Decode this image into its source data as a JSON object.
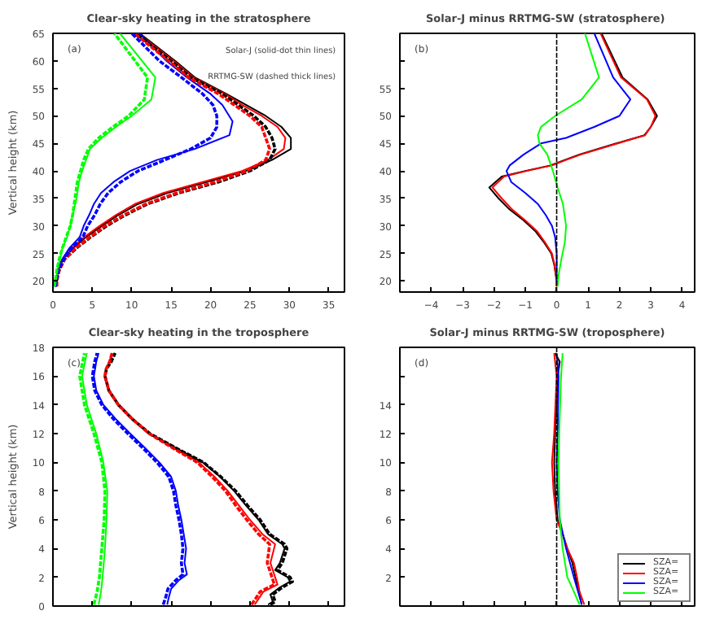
{
  "chart_data": [
    {
      "type": "line",
      "title": "Clear-sky heating in the stratosphere",
      "ylabel": "Vertical height (km)",
      "xlim": [
        0,
        37
      ],
      "ylim": [
        18,
        65
      ],
      "xticks": [
        0,
        5,
        10,
        15,
        20,
        25,
        30,
        35
      ],
      "yticks": [
        20,
        25,
        30,
        35,
        40,
        45,
        50,
        55,
        60,
        65
      ],
      "grid": false,
      "annotations": [
        "(a)",
        "Solar-J (solid-dot thin lines)",
        "RRTMG-SW (dashed thick lines)"
      ],
      "series": [
        {
          "color": "#000000",
          "line_style": "solid",
          "x": [
            0.3,
            0.4,
            0.7,
            1.3,
            2.6,
            4.2,
            6.2,
            8.3,
            10.8,
            14.5,
            19.5,
            24.5,
            27.8,
            30.2,
            30.2,
            29,
            27,
            24.5,
            22,
            18,
            15.5,
            11
          ],
          "values": [
            19,
            20,
            22,
            24,
            26,
            28,
            30,
            32,
            34,
            36,
            38,
            40,
            42,
            44,
            46,
            48,
            50,
            52,
            54,
            57,
            60,
            65
          ]
        },
        {
          "color": "#000000",
          "line_style": "dashed",
          "x": [
            0.3,
            0.4,
            0.8,
            1.5,
            3.0,
            4.8,
            6.8,
            9.2,
            12,
            16,
            21,
            25,
            27.5,
            28.2,
            27.8,
            27,
            25.5,
            23.5,
            21.5,
            17.5,
            15,
            10.5
          ],
          "values": [
            19,
            20,
            22,
            24,
            26,
            28,
            30,
            32,
            34,
            36,
            38,
            40,
            42,
            44,
            46,
            48,
            50,
            52,
            54,
            57,
            60,
            65
          ]
        },
        {
          "color": "#ff0000",
          "line_style": "solid",
          "x": [
            0.3,
            0.4,
            0.6,
            1.2,
            2.4,
            4.0,
            5.9,
            8.0,
            10.4,
            14,
            19,
            24,
            27.3,
            29.3,
            29.5,
            28.5,
            26.5,
            24,
            21.8,
            17.8,
            15.3,
            10.8
          ],
          "values": [
            19,
            20,
            22,
            24,
            26,
            28,
            30,
            32,
            34,
            36,
            38,
            40,
            42,
            44,
            46,
            48,
            50,
            52,
            54,
            57,
            60,
            65
          ]
        },
        {
          "color": "#ff0000",
          "line_style": "dashed",
          "x": [
            0.5,
            0.5,
            0.8,
            1.5,
            2.9,
            4.7,
            6.6,
            9.0,
            11.8,
            15.7,
            20.6,
            24.6,
            27,
            27.5,
            27,
            26.5,
            25,
            23,
            21,
            17.2,
            14.7,
            10.3
          ],
          "values": [
            19,
            20,
            22,
            24,
            26,
            28,
            30,
            32,
            34,
            36,
            38,
            40,
            42,
            44,
            46,
            48,
            50,
            52,
            54,
            57,
            60,
            65
          ]
        },
        {
          "color": "#0000ff",
          "line_style": "solid",
          "x": [
            0.3,
            0.6,
            1.2,
            2.1,
            3.4,
            3.9,
            4.6,
            5.2,
            6.1,
            7.7,
            9.8,
            13.2,
            18,
            22.4,
            22.8,
            21.5,
            20,
            17,
            14.4,
            11
          ],
          "values": [
            19,
            22,
            24,
            26,
            28,
            30,
            32,
            34,
            36,
            38,
            40,
            42,
            44,
            46.5,
            49,
            52,
            54,
            57,
            60,
            65
          ]
        },
        {
          "color": "#0000ff",
          "line_style": "dashed",
          "x": [
            0.3,
            0.7,
            1.4,
            2.4,
            3.8,
            4.4,
            5.3,
            6,
            7,
            8.6,
            10.8,
            14.2,
            17.5,
            20,
            20.8,
            20.8,
            20.3,
            19,
            16.3,
            13.5,
            10
          ],
          "values": [
            19,
            22,
            24,
            26,
            28,
            30,
            32,
            34,
            36,
            38,
            40,
            42,
            44,
            46,
            48,
            50,
            52,
            54,
            57,
            60,
            65
          ]
        },
        {
          "color": "#00ff00",
          "line_style": "solid",
          "x": [
            0.3,
            0.6,
            0.9,
            1.2,
            1.8,
            2.2,
            2.5,
            3.0,
            3.3,
            3.7,
            4.2,
            4.7,
            6.2,
            8,
            10,
            12.5,
            13,
            8.5
          ],
          "values": [
            19,
            22,
            24,
            26,
            28,
            30,
            32,
            35,
            38,
            40,
            42,
            44,
            46,
            48,
            50,
            53,
            57,
            65
          ]
        },
        {
          "color": "#00ff00",
          "line_style": "dashed",
          "x": [
            0.2,
            0.5,
            0.8,
            1.2,
            1.7,
            2.2,
            2.5,
            2.8,
            3.1,
            3.5,
            3.9,
            4.5,
            5.8,
            7.6,
            9.6,
            11.6,
            12,
            7.8
          ],
          "values": [
            19,
            22,
            24,
            26,
            28,
            30,
            32,
            35,
            38,
            40,
            42,
            44,
            46,
            48,
            50,
            53,
            57,
            65
          ]
        }
      ]
    },
    {
      "type": "line",
      "title": "Solar-J  minus RRTMG-SW (stratosphere)",
      "xlim": [
        -5,
        4.4
      ],
      "ylim": [
        18,
        65
      ],
      "xticks": [
        -4,
        -3,
        -2,
        -1,
        0,
        1,
        2,
        3,
        4
      ],
      "yticks": [
        20,
        25,
        30,
        35,
        40,
        45,
        50,
        55,
        {
          "value": 60,
          "label": null
        }
      ],
      "grid": false,
      "annotations": [
        "(b)"
      ],
      "ref_lines": [
        {
          "axis": "x",
          "value": 0,
          "color": "#000000",
          "line_style": "dashed"
        }
      ],
      "series": [
        {
          "color": "#000000",
          "line_style": "solid",
          "x": [
            0,
            0,
            -0.08,
            -0.17,
            -0.4,
            -0.67,
            -1.05,
            -1.5,
            -1.85,
            -2.15,
            -1.75,
            -1.0,
            -0.2,
            0.26,
            0.73,
            1.9,
            2.8,
            3.0,
            3.2,
            2.9,
            2.1,
            1.43
          ],
          "values": [
            19,
            20,
            23,
            25,
            27,
            29,
            31,
            33,
            35,
            37,
            39,
            40,
            41,
            42,
            43,
            45,
            46.5,
            48,
            50,
            53,
            57,
            65
          ]
        },
        {
          "color": "#ff0000",
          "line_style": "solid",
          "x": [
            0,
            0,
            -0.07,
            -0.15,
            -0.37,
            -0.62,
            -1.0,
            -1.42,
            -1.75,
            -2.05,
            -1.68,
            -0.95,
            -0.15,
            0.3,
            0.78,
            1.95,
            2.82,
            3.0,
            3.15,
            2.88,
            2.05,
            1.4
          ],
          "values": [
            19,
            20,
            23,
            25,
            27,
            29,
            31,
            33,
            35,
            37,
            39,
            40,
            41,
            42,
            43,
            45,
            46.5,
            48,
            50,
            53,
            57,
            65
          ]
        },
        {
          "color": "#0000ff",
          "line_style": "solid",
          "x": [
            0,
            0,
            -0.05,
            -0.15,
            -0.35,
            -0.6,
            -1.0,
            -1.45,
            -1.6,
            -1.5,
            -1.05,
            -0.5,
            0.3,
            1.2,
            2.0,
            2.35,
            1.8,
            1.2
          ],
          "values": [
            20,
            25,
            28,
            30,
            32,
            34,
            36,
            38,
            40,
            41,
            43,
            45,
            46,
            48,
            50,
            53,
            57,
            65
          ]
        },
        {
          "color": "#00ff00",
          "line_style": "solid",
          "x": [
            0.03,
            0.06,
            0.15,
            0.26,
            0.3,
            0.2,
            0.03,
            -0.12,
            -0.3,
            -0.55,
            -0.6,
            -0.5,
            -0.05,
            0.8,
            1.35,
            0.9
          ],
          "values": [
            19,
            21,
            24,
            27,
            30,
            34,
            37,
            40,
            43,
            45,
            46.5,
            48,
            50,
            53,
            57,
            65
          ]
        }
      ]
    },
    {
      "type": "line",
      "title": "Clear-sky heating in the troposphere",
      "ylabel": "Vertical height (km)",
      "xlim": [
        0,
        37
      ],
      "ylim": [
        0,
        18
      ],
      "xticks": [
        0,
        5,
        10,
        15,
        20,
        25,
        30,
        35
      ],
      "yticks": [
        0,
        2,
        4,
        6,
        8,
        10,
        12,
        14,
        16,
        18
      ],
      "tick_labels": "y",
      "grid": false,
      "annotations": [
        "(c)"
      ],
      "series": [
        {
          "color": "#000000",
          "line_style": "solid",
          "x": [
            27.3,
            27.9,
            27.6,
            28.8,
            30.1,
            29.8,
            28.2,
            28.8,
            29.4,
            29.1,
            27.3,
            26.1,
            24.5,
            23,
            21.2,
            19.0,
            15.6,
            12.3,
            10.1,
            8.3,
            7.1,
            6.6,
            6.75,
            7.2,
            7.5
          ],
          "values": [
            0.1,
            0.3,
            0.8,
            1.3,
            1.7,
            2,
            2.5,
            3,
            4,
            4.3,
            5,
            6,
            7,
            8,
            9,
            10,
            11,
            12,
            13,
            14,
            15,
            16,
            16.5,
            17,
            17.6
          ]
        },
        {
          "color": "#000000",
          "line_style": "dashed",
          "x": [
            27.6,
            28.2,
            27.9,
            29.1,
            30.4,
            30.1,
            28.5,
            29.1,
            29.7,
            29.4,
            27.5,
            26.3,
            24.7,
            23.2,
            21.3,
            19.1,
            15.6,
            12.3,
            10.1,
            8.3,
            7.1,
            6.6,
            6.8,
            7.4,
            7.9
          ],
          "values": [
            0.1,
            0.3,
            0.8,
            1.3,
            1.7,
            2,
            2.5,
            3,
            4,
            4.3,
            5,
            6,
            7,
            8,
            9,
            10,
            11,
            12,
            13,
            14,
            15,
            16,
            16.5,
            17,
            17.6
          ]
        },
        {
          "color": "#ff0000",
          "line_style": "solid",
          "x": [
            25.6,
            26.1,
            26.7,
            28.5,
            28.2,
            27.6,
            28.2,
            26.6,
            25,
            23.6,
            22.2,
            20.5,
            18.5,
            15.3,
            12.2,
            10.1,
            8.3,
            7.1,
            6.6,
            6.75,
            7.2,
            7.5
          ],
          "values": [
            0.1,
            0.5,
            1,
            1.5,
            2,
            3,
            4.3,
            5,
            6,
            7,
            8,
            9,
            10,
            11,
            12,
            13,
            14,
            15,
            16,
            16.5,
            17,
            17.6
          ]
        },
        {
          "color": "#ff0000",
          "line_style": "dashed",
          "x": [
            25.2,
            25.7,
            26.3,
            28.1,
            27.8,
            27.2,
            27.5,
            26.1,
            24.6,
            23.2,
            21.9,
            20.2,
            18.3,
            15.2,
            12.2,
            10.1,
            8.3,
            7.1,
            6.6,
            6.75,
            7.2,
            7.5
          ],
          "values": [
            0.1,
            0.5,
            1,
            1.5,
            2,
            3,
            4.3,
            5,
            6,
            7,
            8,
            9,
            10,
            11,
            12,
            13,
            14,
            15,
            16,
            16.5,
            17,
            17.6
          ]
        },
        {
          "color": "#0000ff",
          "line_style": "solid",
          "x": [
            14.5,
            14.7,
            15,
            16,
            17,
            16.7,
            16.9,
            16.6,
            16.3,
            15.9,
            15.6,
            15.3,
            15,
            13.5,
            11.7,
            9.8,
            8,
            6.4,
            5.5,
            5.2,
            5.5,
            5.8
          ],
          "values": [
            0.1,
            0.6,
            1.2,
            1.8,
            2.2,
            3,
            4,
            5,
            6,
            7,
            8,
            8.5,
            9,
            10,
            11,
            12,
            13,
            14,
            15,
            16,
            17,
            17.6
          ]
        },
        {
          "color": "#0000ff",
          "line_style": "dashed",
          "x": [
            14,
            14.3,
            14.6,
            15.6,
            16.5,
            16.3,
            16.5,
            16.3,
            16,
            15.6,
            15.3,
            15,
            14.7,
            13.2,
            11.4,
            9.5,
            7.7,
            6.2,
            5.3,
            5.0,
            5.3,
            5.6
          ],
          "values": [
            0.1,
            0.6,
            1.2,
            1.8,
            2.2,
            3,
            4,
            5,
            6,
            7,
            8,
            8.5,
            9,
            10,
            11,
            12,
            13,
            14,
            15,
            16,
            17,
            17.6
          ]
        },
        {
          "color": "#00ff00",
          "line_style": "solid",
          "x": [
            5.8,
            6.1,
            6.3,
            6.6,
            6.8,
            6.9,
            6.4,
            5.5,
            4.3,
            3.7,
            4.3
          ],
          "values": [
            0.1,
            1,
            2,
            4,
            6,
            8,
            10,
            12,
            14,
            16,
            17.6
          ]
        },
        {
          "color": "#00ff00",
          "line_style": "dashed",
          "x": [
            5.2,
            5.6,
            5.9,
            6.2,
            6.5,
            6.6,
            6.2,
            5.2,
            4.0,
            3.4,
            4.0
          ],
          "values": [
            0.1,
            1,
            2,
            4,
            6,
            8,
            10,
            12,
            14,
            16,
            17.6
          ]
        }
      ]
    },
    {
      "type": "line",
      "title": "Solar-J minus RRTMG-SW (troposphere)",
      "xlim": [
        -5,
        4.4
      ],
      "ylim": [
        0,
        18
      ],
      "xticks": [
        -4,
        -3,
        -2,
        -1,
        0,
        1,
        2,
        3,
        4
      ],
      "yticks": [
        2,
        4,
        6,
        8,
        10,
        12,
        14,
        {
          "value": 16,
          "label": null
        }
      ],
      "tick_labels": "y",
      "grid": false,
      "legend": "bottom right",
      "annotations": [
        "(d)"
      ],
      "ref_lines": [
        {
          "axis": "x",
          "value": 0,
          "color": "#000000",
          "line_style": "dashed"
        }
      ],
      "series": [
        {
          "name": "SZA=",
          "color": "#000000",
          "line_style": "solid",
          "x": [
            0.8,
            0.7,
            0.6,
            0.5,
            0.34,
            0.19,
            0.03,
            -0.05,
            -0.08,
            -0.05,
            0,
            0.03,
            0.1,
            -0.05
          ],
          "values": [
            0.1,
            1,
            2,
            3,
            4,
            5,
            6,
            8,
            10,
            12,
            14,
            16,
            17,
            17.6
          ]
        },
        {
          "name": "SZA=",
          "color": "#ff0000",
          "line_style": "solid",
          "x": [
            0.88,
            0.73,
            0.65,
            0.55,
            0.34,
            0.19,
            0,
            -0.1,
            -0.15,
            -0.08,
            0,
            -0.08
          ],
          "values": [
            0.1,
            1,
            2,
            3,
            4,
            5,
            6,
            8,
            10,
            12,
            16,
            17.6
          ]
        },
        {
          "name": "SZA=",
          "color": "#0000ff",
          "line_style": "solid",
          "x": [
            0.8,
            0.55,
            0.3,
            0.1,
            0.03,
            0,
            0.03,
            0.06,
            0
          ],
          "values": [
            0.1,
            2,
            4,
            6,
            8,
            10,
            12,
            16,
            17.6
          ]
        },
        {
          "name": "SZA=",
          "color": "#00ff00",
          "line_style": "solid",
          "x": [
            0.73,
            0.55,
            0.34,
            0.19,
            0.1,
            0.08,
            0.06,
            0.08,
            0.14,
            0.19
          ],
          "values": [
            0.1,
            1,
            2,
            4,
            6,
            8,
            10,
            12,
            16,
            17.6
          ]
        }
      ]
    }
  ]
}
